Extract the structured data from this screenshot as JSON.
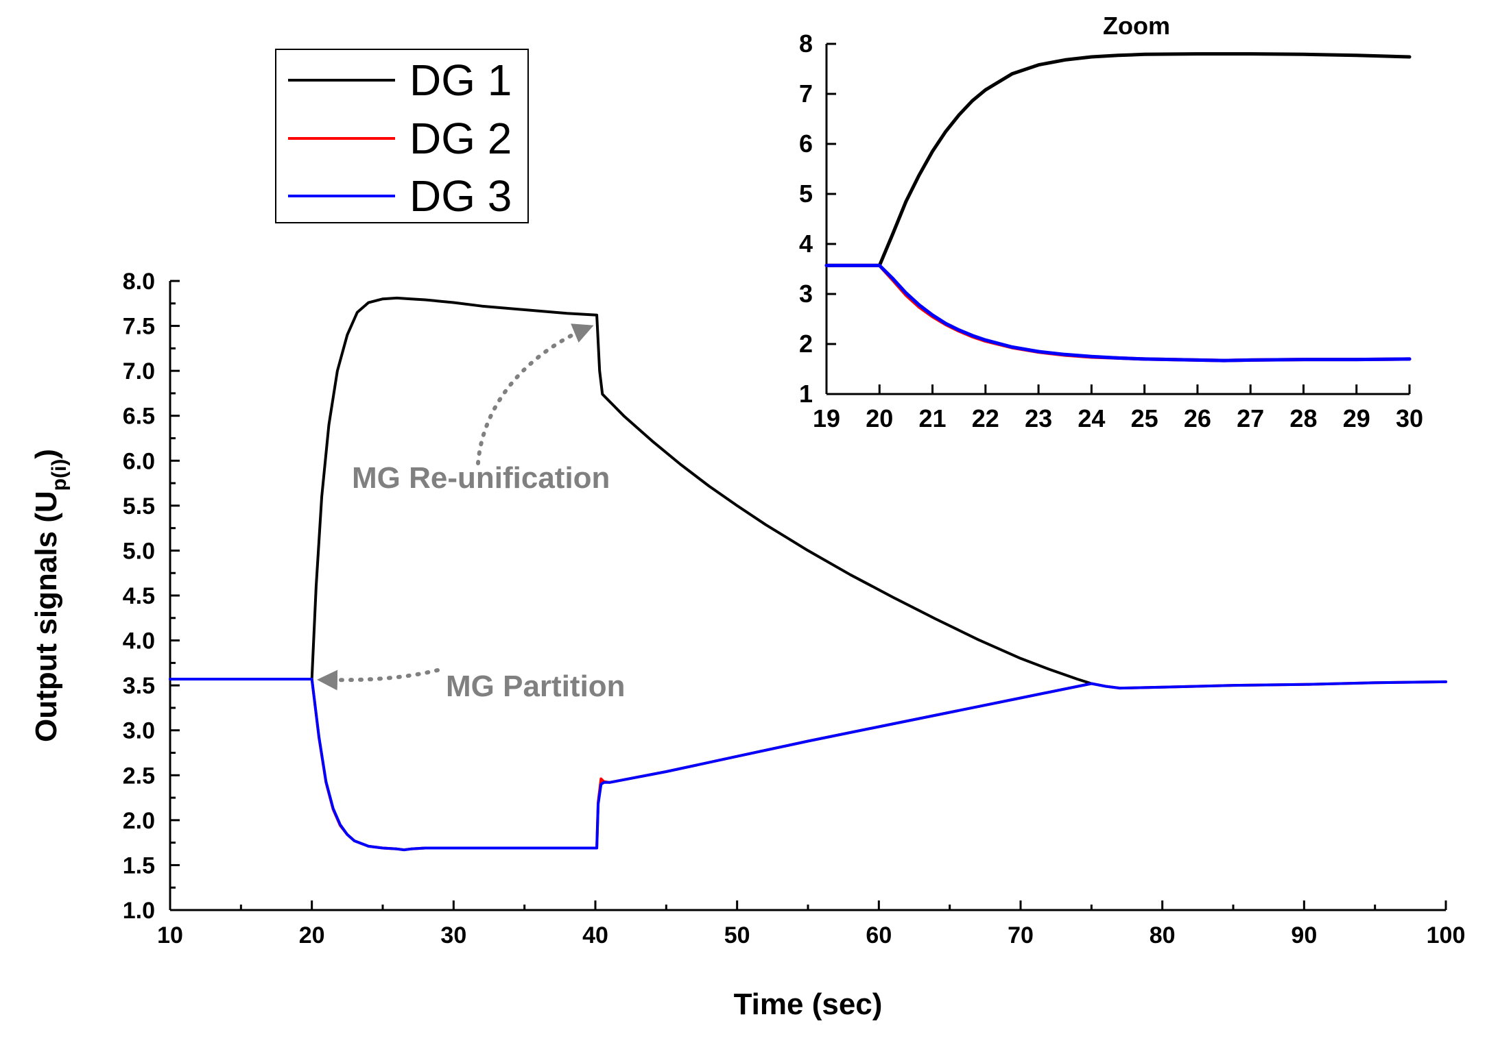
{
  "chart_data": [
    {
      "id": "main",
      "type": "line",
      "title": "",
      "xlabel": "Time (sec)",
      "ylabel_main": "Output signals (U",
      "ylabel_sub": "p(i)",
      "ylabel_close": ")",
      "xlim": [
        10,
        100
      ],
      "ylim": [
        1.0,
        8.0
      ],
      "xticks": [
        10,
        20,
        30,
        40,
        50,
        60,
        70,
        80,
        90,
        100
      ],
      "xtick_labels": [
        "10",
        "20",
        "30",
        "40",
        "50",
        "60",
        "70",
        "80",
        "90",
        "100"
      ],
      "yticks": [
        1.0,
        1.5,
        2.0,
        2.5,
        3.0,
        3.5,
        4.0,
        4.5,
        5.0,
        5.5,
        6.0,
        6.5,
        7.0,
        7.5,
        8.0
      ],
      "ytick_labels": [
        "1.0",
        "1.5",
        "2.0",
        "2.5",
        "3.0",
        "3.5",
        "4.0",
        "4.5",
        "5.0",
        "5.5",
        "6.0",
        "6.5",
        "7.0",
        "7.5",
        "8.0"
      ],
      "series": [
        {
          "name": "DG 1",
          "color": "#000000",
          "x": [
            10,
            20,
            20.3,
            20.7,
            21.2,
            21.8,
            22.5,
            23.2,
            24,
            25,
            26,
            27,
            28,
            30,
            32,
            35,
            38,
            40.1,
            40.3,
            40.5,
            42,
            44,
            46,
            48,
            50,
            52,
            55,
            58,
            61,
            64,
            67,
            70,
            72,
            74,
            75
          ],
          "y": [
            3.57,
            3.57,
            4.6,
            5.6,
            6.4,
            7.0,
            7.4,
            7.65,
            7.76,
            7.8,
            7.81,
            7.8,
            7.79,
            7.76,
            7.72,
            7.68,
            7.64,
            7.62,
            7.0,
            6.74,
            6.5,
            6.22,
            5.96,
            5.72,
            5.5,
            5.29,
            5.0,
            4.73,
            4.48,
            4.24,
            4.01,
            3.8,
            3.68,
            3.57,
            3.52
          ]
        },
        {
          "name": "DG 2",
          "color": "#ff0000",
          "x": [
            10,
            20,
            20.5,
            21,
            21.5,
            22,
            22.5,
            23,
            24,
            25,
            26,
            26.5,
            27,
            28,
            30,
            35,
            40.1,
            40.2,
            40.4,
            40.6,
            41,
            45,
            50,
            55,
            60,
            65,
            70,
            75,
            76,
            77,
            80,
            85,
            90,
            95,
            100
          ],
          "y": [
            3.57,
            3.57,
            2.92,
            2.42,
            2.12,
            1.94,
            1.84,
            1.77,
            1.71,
            1.69,
            1.68,
            1.67,
            1.68,
            1.69,
            1.69,
            1.69,
            1.69,
            2.2,
            2.46,
            2.43,
            2.42,
            2.54,
            2.71,
            2.88,
            3.04,
            3.2,
            3.36,
            3.52,
            3.49,
            3.47,
            3.48,
            3.5,
            3.51,
            3.53,
            3.54
          ]
        },
        {
          "name": "DG 3",
          "color": "#0000ff",
          "x": [
            10,
            20,
            20.5,
            21,
            21.5,
            22,
            22.5,
            23,
            24,
            25,
            26,
            26.5,
            27,
            28,
            30,
            35,
            40.1,
            40.2,
            40.4,
            40.6,
            41,
            45,
            50,
            55,
            60,
            65,
            70,
            75,
            76,
            77,
            80,
            85,
            90,
            95,
            100
          ],
          "y": [
            3.57,
            3.57,
            2.93,
            2.43,
            2.13,
            1.95,
            1.84,
            1.77,
            1.71,
            1.69,
            1.68,
            1.67,
            1.68,
            1.69,
            1.69,
            1.69,
            1.69,
            2.18,
            2.4,
            2.42,
            2.42,
            2.54,
            2.71,
            2.88,
            3.04,
            3.2,
            3.36,
            3.52,
            3.49,
            3.47,
            3.48,
            3.5,
            3.51,
            3.53,
            3.54
          ]
        }
      ],
      "annotations": [
        {
          "text": "MG Re-unification",
          "target": [
            40,
            7.55
          ]
        },
        {
          "text": "MG Partition",
          "target": [
            20,
            3.57
          ]
        }
      ],
      "legend": {
        "position": "top-left",
        "entries": [
          "DG 1",
          "DG 2",
          "DG 3"
        ]
      }
    },
    {
      "id": "inset",
      "type": "line",
      "title": "Zoom",
      "xlabel": "",
      "ylabel": "",
      "xlim": [
        19,
        30
      ],
      "ylim": [
        1,
        8
      ],
      "xticks": [
        19,
        20,
        21,
        22,
        23,
        24,
        25,
        26,
        27,
        28,
        29,
        30
      ],
      "xtick_labels": [
        "19",
        "20",
        "21",
        "22",
        "23",
        "24",
        "25",
        "26",
        "27",
        "28",
        "29",
        "30"
      ],
      "yticks": [
        1,
        2,
        3,
        4,
        5,
        6,
        7,
        8
      ],
      "ytick_labels": [
        "1",
        "2",
        "3",
        "4",
        "5",
        "6",
        "7",
        "8"
      ],
      "series": [
        {
          "name": "DG 1",
          "color": "#000000",
          "x": [
            19,
            20,
            20.25,
            20.5,
            20.75,
            21,
            21.25,
            21.5,
            21.75,
            22,
            22.5,
            23,
            23.5,
            24,
            24.5,
            25,
            26,
            27,
            28,
            29,
            30
          ],
          "y": [
            3.57,
            3.57,
            4.2,
            4.85,
            5.38,
            5.85,
            6.25,
            6.58,
            6.86,
            7.08,
            7.4,
            7.58,
            7.68,
            7.74,
            7.77,
            7.79,
            7.8,
            7.8,
            7.79,
            7.77,
            7.74
          ]
        },
        {
          "name": "DG 2",
          "color": "#ff0000",
          "x": [
            19,
            20,
            20.25,
            20.5,
            20.75,
            21,
            21.25,
            21.5,
            21.75,
            22,
            22.5,
            23,
            23.5,
            24,
            24.5,
            25,
            25.5,
            26,
            26.5,
            27,
            28,
            29,
            30
          ],
          "y": [
            3.57,
            3.57,
            3.28,
            2.98,
            2.74,
            2.55,
            2.39,
            2.26,
            2.15,
            2.06,
            1.93,
            1.84,
            1.78,
            1.74,
            1.72,
            1.7,
            1.69,
            1.68,
            1.67,
            1.68,
            1.69,
            1.69,
            1.7
          ]
        },
        {
          "name": "DG 3",
          "color": "#0000ff",
          "x": [
            19,
            20,
            20.25,
            20.5,
            20.75,
            21,
            21.25,
            21.5,
            21.75,
            22,
            22.5,
            23,
            23.5,
            24,
            24.5,
            25,
            25.5,
            26,
            26.5,
            27,
            28,
            29,
            30
          ],
          "y": [
            3.57,
            3.57,
            3.31,
            3.02,
            2.78,
            2.58,
            2.41,
            2.28,
            2.17,
            2.08,
            1.94,
            1.85,
            1.79,
            1.75,
            1.72,
            1.7,
            1.69,
            1.68,
            1.67,
            1.68,
            1.69,
            1.69,
            1.7
          ]
        }
      ]
    }
  ],
  "colors": {
    "dg1": "#000000",
    "dg2": "#ff0000",
    "dg3": "#0000ff",
    "annotation": "#808080"
  }
}
